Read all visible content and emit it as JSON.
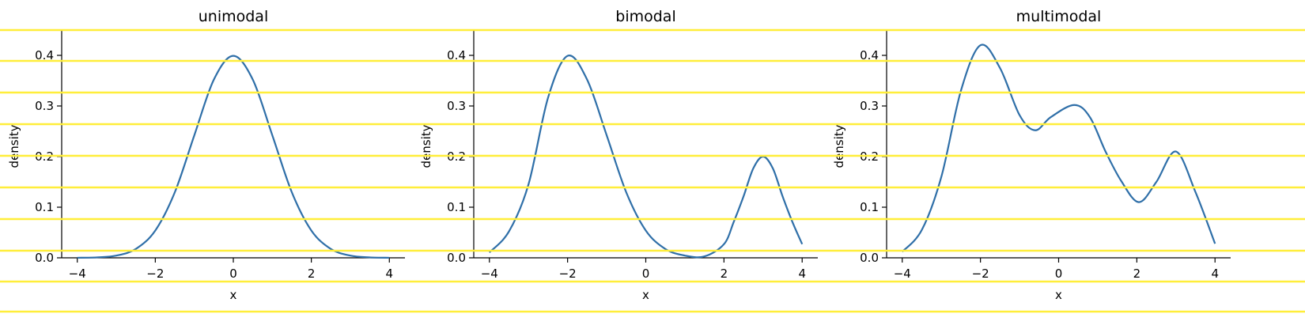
{
  "colors": {
    "curve": "#2f6fa8",
    "overlay_lines": "#ffee3a"
  },
  "chart_data": [
    {
      "type": "line",
      "title": "unimodal",
      "xlabel": "x",
      "ylabel": "density",
      "xlim": [
        -4.4,
        4.4
      ],
      "ylim": [
        0,
        0.45
      ],
      "xticks": [
        -4,
        -2,
        0,
        2,
        4
      ],
      "yticks": [
        0.0,
        0.1,
        0.2,
        0.3,
        0.4
      ],
      "xtick_labels": [
        "−4",
        "−2",
        "0",
        "2",
        "4"
      ],
      "ytick_labels": [
        "0.0",
        "0.1",
        "0.2",
        "0.3",
        "0.4"
      ],
      "grid": false,
      "series": [
        {
          "x": [
            -4,
            -3.5,
            -3,
            -2.5,
            -2,
            -1.5,
            -1,
            -0.5,
            0,
            0.5,
            1,
            1.5,
            2,
            2.5,
            3,
            3.5,
            4
          ],
          "y": [
            0.0001,
            0.0009,
            0.0044,
            0.0175,
            0.054,
            0.1295,
            0.242,
            0.352,
            0.399,
            0.352,
            0.242,
            0.1295,
            0.054,
            0.0175,
            0.0044,
            0.0009,
            0.0001
          ]
        }
      ]
    },
    {
      "type": "line",
      "title": "bimodal",
      "xlabel": "x",
      "ylabel": "density",
      "xlim": [
        -4.4,
        4.4
      ],
      "ylim": [
        0,
        0.45
      ],
      "xticks": [
        -4,
        -2,
        0,
        2,
        4
      ],
      "yticks": [
        0.0,
        0.1,
        0.2,
        0.3,
        0.4
      ],
      "xtick_labels": [
        "−4",
        "−2",
        "0",
        "2",
        "4"
      ],
      "ytick_labels": [
        "0.0",
        "0.1",
        "0.2",
        "0.3",
        "0.4"
      ],
      "grid": false,
      "series": [
        {
          "x": [
            -4,
            -3.5,
            -3,
            -2.5,
            -2,
            -1.5,
            -1,
            -0.5,
            0,
            0.5,
            1,
            1.5,
            2,
            2.25,
            2.5,
            2.75,
            3,
            3.25,
            3.5,
            3.75,
            4
          ],
          "y": [
            0.0106,
            0.052,
            0.145,
            0.3163,
            0.399,
            0.352,
            0.242,
            0.1295,
            0.054,
            0.0175,
            0.0044,
            0.0028,
            0.027,
            0.071,
            0.1213,
            0.1767,
            0.2,
            0.1767,
            0.1213,
            0.071,
            0.027
          ]
        }
      ]
    },
    {
      "type": "line",
      "title": "multimodal",
      "xlabel": "x",
      "ylabel": "density",
      "xlim": [
        -4.4,
        4.4
      ],
      "ylim": [
        0,
        0.45
      ],
      "xticks": [
        -4,
        -2,
        0,
        2,
        4
      ],
      "yticks": [
        0.0,
        0.1,
        0.2,
        0.3,
        0.4
      ],
      "xtick_labels": [
        "−4",
        "−2",
        "0",
        "2",
        "4"
      ],
      "ytick_labels": [
        "0.0",
        "0.1",
        "0.2",
        "0.3",
        "0.4"
      ],
      "grid": false,
      "series": [
        {
          "x": [
            -4,
            -3.5,
            -3,
            -2.5,
            -2,
            -1.5,
            -1,
            -0.6,
            -0.2,
            0.4,
            0.8,
            1.2,
            1.6,
            2.05,
            2.5,
            3,
            3.5,
            4
          ],
          "y": [
            0.012,
            0.055,
            0.16,
            0.33,
            0.42,
            0.375,
            0.282,
            0.252,
            0.278,
            0.302,
            0.278,
            0.21,
            0.152,
            0.11,
            0.15,
            0.21,
            0.13,
            0.028
          ]
        }
      ]
    }
  ]
}
